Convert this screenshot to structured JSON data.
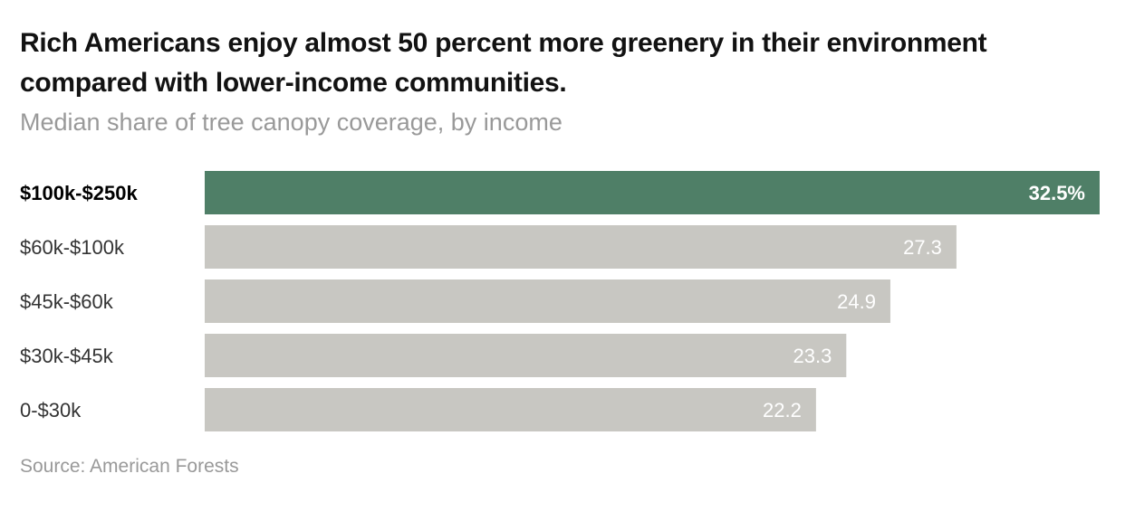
{
  "title": "Rich Americans enjoy almost 50 percent more greenery in their environment compared with lower-income communities.",
  "subtitle": "Median share of tree canopy coverage, by income",
  "source": "Source: American Forests",
  "colors": {
    "highlight": "#4f7f67",
    "default": "#c8c7c2"
  },
  "chart_data": {
    "type": "bar",
    "orientation": "horizontal",
    "title": "Rich Americans enjoy almost 50 percent more greenery in their environment compared with lower-income communities.",
    "subtitle": "Median share of tree canopy coverage, by income",
    "categories": [
      "$100k-$250k",
      "$60k-$100k",
      "$45k-$60k",
      "$30k-$45k",
      "0-$30k"
    ],
    "values": [
      32.5,
      27.3,
      24.9,
      23.3,
      22.2
    ],
    "labels": [
      "32.5%",
      "27.3",
      "24.9",
      "23.3",
      "22.2"
    ],
    "highlight_index": 0,
    "xlim": [
      0,
      32.5
    ],
    "grid": false
  }
}
